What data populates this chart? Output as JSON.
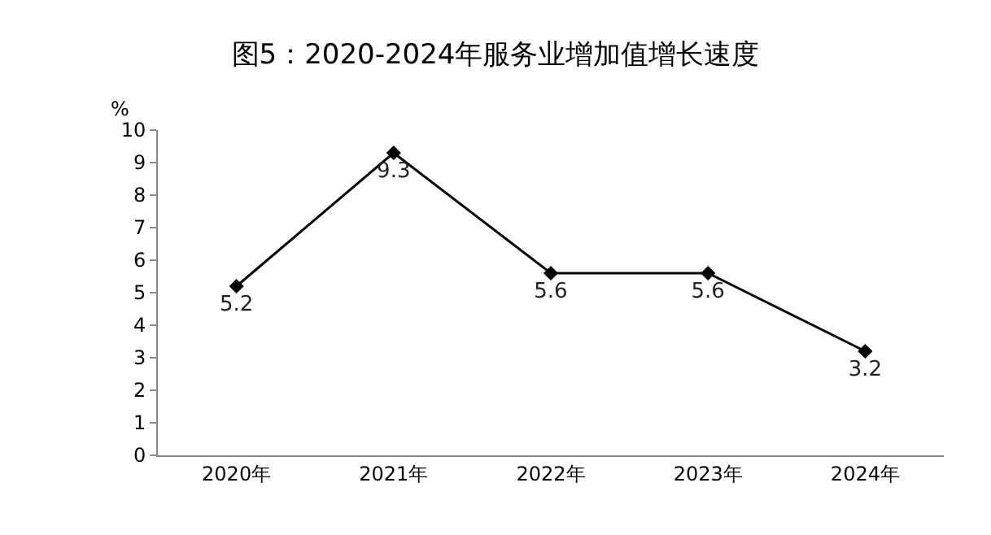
{
  "chart_data": {
    "type": "line",
    "title": "图5：2020-2024年服务业增加值增长速度",
    "ylabel": "%",
    "categories": [
      "2020年",
      "2021年",
      "2022年",
      "2023年",
      "2024年"
    ],
    "series": [
      {
        "color": "#000000",
        "values": [
          5.2,
          9.3,
          5.6,
          5.6,
          3.2
        ]
      }
    ],
    "ylim": [
      0,
      10
    ],
    "yticks": [
      0,
      1,
      2,
      3,
      4,
      5,
      6,
      7,
      8,
      9,
      10
    ],
    "marker": "diamond",
    "line_style": "solid",
    "data_labels": true
  }
}
